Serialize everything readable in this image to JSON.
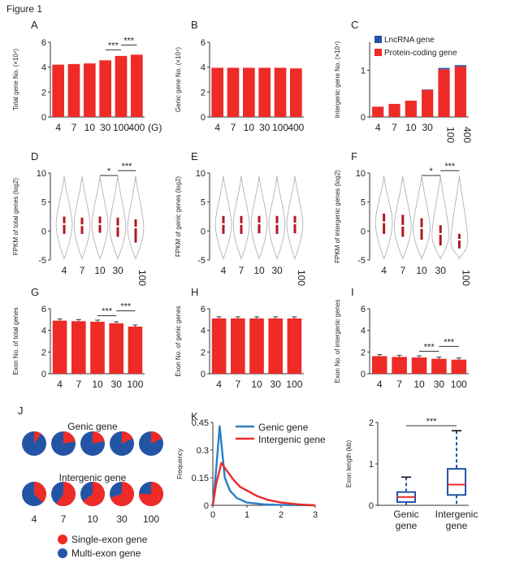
{
  "figure_title": "Figure 1",
  "colors": {
    "red": "#ee2b27",
    "blue": "#2454a6",
    "lightblue": "#2a7fc4",
    "darkred": "#b01820",
    "axis": "#333333",
    "violin": "#aaaaaa"
  },
  "chart_data": [
    {
      "id": "A",
      "panel": "A",
      "type": "bar",
      "categories": [
        "4",
        "7",
        "10",
        "30",
        "100",
        "400"
      ],
      "values": [
        4.2,
        4.25,
        4.3,
        4.55,
        4.9,
        5.0
      ],
      "ylabel": "Total gene No. (×10⁴)",
      "ylim": [
        0,
        6
      ],
      "yticks": [
        "0",
        "2",
        "4",
        "6"
      ],
      "xunit": "(G)",
      "signif": [
        {
          "label": "***",
          "from": 3,
          "to": 4
        },
        {
          "label": "***",
          "from": 4,
          "to": 5
        }
      ]
    },
    {
      "id": "B",
      "panel": "B",
      "type": "bar",
      "categories": [
        "4",
        "7",
        "10",
        "30",
        "100",
        "400"
      ],
      "values": [
        3.95,
        3.95,
        3.95,
        3.95,
        3.95,
        3.9
      ],
      "ylabel": "Genic gene No. (×10⁴)",
      "ylim": [
        0,
        6
      ],
      "yticks": [
        "0",
        "2",
        "4",
        "6"
      ]
    },
    {
      "id": "C",
      "panel": "C",
      "type": "bar",
      "categories": [
        "4",
        "7",
        "10",
        "30",
        "100",
        "400"
      ],
      "series": [
        {
          "name": "Protein-coding gene",
          "values": [
            0.22,
            0.28,
            0.35,
            0.58,
            1.02,
            1.08
          ]
        },
        {
          "name": "LncRNA gene",
          "values": [
            0.0,
            0.0,
            0.0,
            0.01,
            0.03,
            0.03
          ]
        }
      ],
      "ylabel": "Intergenic gene No. (×10⁴)",
      "ylim": [
        0,
        1.6
      ],
      "yticks": [
        "0",
        "1"
      ],
      "legend": "top-right"
    },
    {
      "id": "D",
      "panel": "D",
      "type": "violin",
      "categories": [
        "4",
        "7",
        "10",
        "30",
        "100"
      ],
      "medians": [
        1.2,
        1.0,
        1.2,
        0.8,
        0.6
      ],
      "iqr": [
        [
          -0.5,
          2.5
        ],
        [
          -0.5,
          2.3
        ],
        [
          -0.3,
          2.5
        ],
        [
          -1.0,
          2.3
        ],
        [
          -2.0,
          2.0
        ]
      ],
      "ylabel": "FPKM of total genes (log2)",
      "ylim": [
        -5,
        10
      ],
      "yticks": [
        "-5",
        "0",
        "5",
        "10"
      ],
      "signif": [
        {
          "label": "*",
          "from": 2,
          "to": 3
        },
        {
          "label": "***",
          "from": 3,
          "to": 4
        }
      ]
    },
    {
      "id": "E",
      "panel": "E",
      "type": "violin",
      "categories": [
        "4",
        "7",
        "10",
        "30",
        "100"
      ],
      "medians": [
        1.2,
        1.2,
        1.3,
        1.2,
        1.3
      ],
      "iqr": [
        [
          -0.5,
          2.6
        ],
        [
          -0.5,
          2.6
        ],
        [
          -0.4,
          2.6
        ],
        [
          -0.5,
          2.6
        ],
        [
          -0.4,
          2.6
        ]
      ],
      "ylabel": "FPKM of genic genes (log2)",
      "ylim": [
        -5,
        10
      ],
      "yticks": [
        "-5",
        "0",
        "5",
        "10"
      ]
    },
    {
      "id": "F",
      "panel": "F",
      "type": "violin",
      "categories": [
        "4",
        "7",
        "10",
        "30",
        "100"
      ],
      "medians": [
        1.5,
        0.9,
        0.5,
        -0.5,
        -1.5
      ],
      "iqr": [
        [
          -0.5,
          3.0
        ],
        [
          -1.0,
          2.8
        ],
        [
          -1.5,
          2.2
        ],
        [
          -2.5,
          1.0
        ],
        [
          -3.0,
          -0.5
        ]
      ],
      "ylabel": "FPKM of intergenic genes (log2)",
      "ylim": [
        -5,
        10
      ],
      "yticks": [
        "-5",
        "0",
        "5",
        "10"
      ],
      "signif": [
        {
          "label": "*",
          "from": 2,
          "to": 3
        },
        {
          "label": "***",
          "from": 3,
          "to": 4
        }
      ]
    },
    {
      "id": "G",
      "panel": "G",
      "type": "bar",
      "categories": [
        "4",
        "7",
        "10",
        "30",
        "100"
      ],
      "values": [
        4.9,
        4.85,
        4.8,
        4.65,
        4.35
      ],
      "ylabel": "Exon No. of total genes",
      "ylim": [
        0,
        6
      ],
      "yticks": [
        "0",
        "2",
        "4",
        "6"
      ],
      "signif": [
        {
          "label": "***",
          "from": 2,
          "to": 3
        },
        {
          "label": "***",
          "from": 3,
          "to": 4
        }
      ]
    },
    {
      "id": "H",
      "panel": "H",
      "type": "bar",
      "categories": [
        "4",
        "7",
        "10",
        "30",
        "100"
      ],
      "values": [
        5.1,
        5.1,
        5.1,
        5.1,
        5.1
      ],
      "ylabel": "Exon No. of genic genes",
      "ylim": [
        0,
        6
      ],
      "yticks": [
        "0",
        "2",
        "4",
        "6"
      ]
    },
    {
      "id": "I",
      "panel": "I",
      "type": "bar",
      "categories": [
        "4",
        "7",
        "10",
        "30",
        "100"
      ],
      "values": [
        1.62,
        1.55,
        1.5,
        1.38,
        1.3
      ],
      "ylabel": "Exon No. of intergenic genes",
      "ylim": [
        0,
        6
      ],
      "yticks": [
        "0",
        "2",
        "4",
        "6"
      ],
      "signif": [
        {
          "label": "***",
          "from": 2,
          "to": 3
        },
        {
          "label": "***",
          "from": 3,
          "to": 4
        }
      ]
    },
    {
      "id": "J",
      "panel": "J",
      "type": "pie",
      "categories": [
        "4",
        "7",
        "10",
        "30",
        "100"
      ],
      "groups": [
        {
          "label": "Genic gene",
          "single_exon_fraction": [
            0.1,
            0.22,
            0.22,
            0.18,
            0.18
          ]
        },
        {
          "label": "Intergenic gene",
          "single_exon_fraction": [
            0.38,
            0.6,
            0.65,
            0.7,
            0.75
          ]
        }
      ],
      "legend": [
        {
          "name": "Single-exon gene",
          "color": "#ee2b27"
        },
        {
          "name": "Multi-exon gene",
          "color": "#2454a6"
        }
      ]
    },
    {
      "id": "K",
      "panel": "K",
      "type": "line",
      "ylabel": "Frequency",
      "xlim": [
        0,
        3
      ],
      "ylim": [
        0,
        0.45
      ],
      "xticks": [
        "0",
        "1",
        "2",
        "3"
      ],
      "yticks": [
        "0",
        "0.15",
        "0.3",
        "0.45"
      ],
      "series": [
        {
          "name": "Genic gene",
          "color": "#2a7fc4",
          "x": [
            0,
            0.1,
            0.2,
            0.35,
            0.5,
            0.7,
            1.0,
            1.5,
            2.0,
            3.0
          ],
          "y": [
            0,
            0.2,
            0.43,
            0.15,
            0.08,
            0.04,
            0.015,
            0.005,
            0.002,
            0
          ]
        },
        {
          "name": "Intergenic gene",
          "color": "#ee2b27",
          "x": [
            0,
            0.1,
            0.25,
            0.4,
            0.6,
            0.8,
            1.0,
            1.3,
            1.6,
            2.0,
            2.5,
            3.0
          ],
          "y": [
            0,
            0.12,
            0.23,
            0.19,
            0.14,
            0.1,
            0.08,
            0.05,
            0.03,
            0.015,
            0.005,
            0
          ]
        }
      ]
    },
    {
      "id": "L",
      "type": "box",
      "categories": [
        "Genic\ngene",
        "Intergenic\ngene"
      ],
      "boxes": [
        {
          "min": 0,
          "q1": 0.08,
          "median": 0.2,
          "q3": 0.32,
          "max": 0.68
        },
        {
          "min": 0,
          "q1": 0.25,
          "median": 0.5,
          "q3": 0.88,
          "max": 1.8
        }
      ],
      "ylabel": "Exon length (kb)",
      "ylim": [
        0,
        2
      ],
      "yticks": [
        "0",
        "1",
        "2"
      ],
      "signif": [
        {
          "label": "***",
          "from": 0,
          "to": 1
        }
      ]
    }
  ]
}
